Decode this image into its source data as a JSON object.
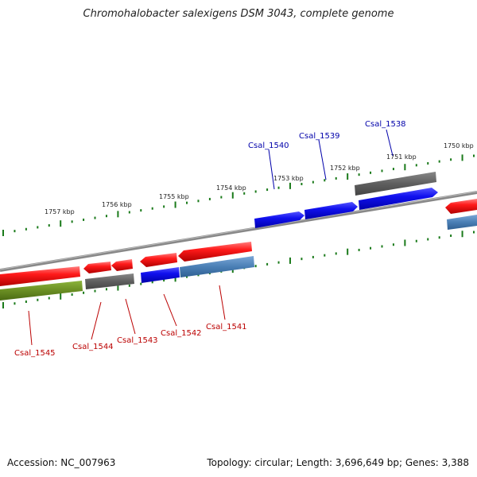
{
  "title": "Chromohalobacter salexigens DSM 3043, complete genome",
  "footer": {
    "accession": "Accession: NC_007963",
    "summary": "Topology: circular; Length: 3,696,649 bp; Genes: 3,388"
  },
  "colors": {
    "forward_cds": "#1010ee",
    "reverse_cds": "#ee1111",
    "other_gene": "#666666",
    "pseudo_gene": "#6a8e23",
    "steelblue_gene": "#4a7fb5",
    "backbone": "#888888",
    "ticks": "#1a7a1a",
    "label_top": "#0000aa",
    "label_bottom": "#bb0000"
  },
  "scale_labels": [
    "1750 kbp",
    "1751 kbp",
    "1752 kbp",
    "1753 kbp",
    "1754 kbp",
    "1755 kbp",
    "1756 kbp",
    "1757 kbp"
  ],
  "gene_labels_top": [
    "Csal_1538",
    "Csal_1539",
    "Csal_1540"
  ],
  "gene_labels_bottom": [
    "Csal_1541",
    "Csal_1542",
    "Csal_1543",
    "Csal_1544",
    "Csal_1545"
  ]
}
